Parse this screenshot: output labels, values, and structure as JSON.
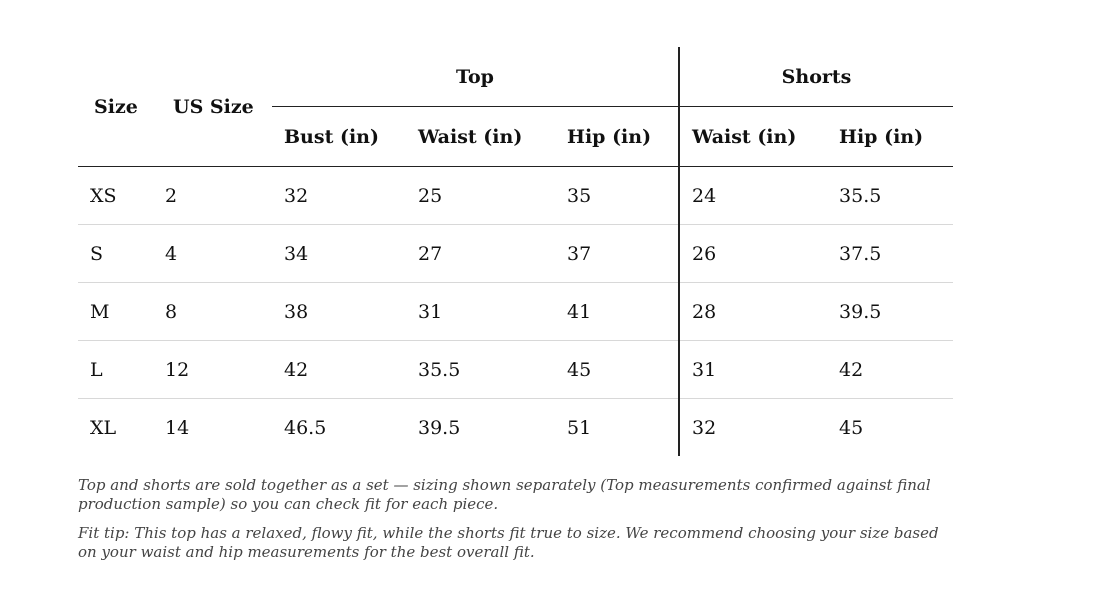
{
  "table": {
    "size_header": "Size",
    "us_size_header": "US Size",
    "top_header": "Top",
    "shorts_header": "Shorts",
    "sub_headers": {
      "top_bust": "Bust (in)",
      "top_waist": "Waist (in)",
      "top_hip": "Hip (in)",
      "shorts_waist": "Waist (in)",
      "shorts_hip": "Hip (in)"
    },
    "rows": [
      {
        "size": "XS",
        "us": "2",
        "bust": "32",
        "top_waist": "25",
        "top_hip": "35",
        "shorts_waist": "24",
        "shorts_hip": "35.5"
      },
      {
        "size": "S",
        "us": "4",
        "bust": "34",
        "top_waist": "27",
        "top_hip": "37",
        "shorts_waist": "26",
        "shorts_hip": "37.5"
      },
      {
        "size": "M",
        "us": "8",
        "bust": "38",
        "top_waist": "31",
        "top_hip": "41",
        "shorts_waist": "28",
        "shorts_hip": "39.5"
      },
      {
        "size": "L",
        "us": "12",
        "bust": "42",
        "top_waist": "35.5",
        "top_hip": "45",
        "shorts_waist": "31",
        "shorts_hip": "42"
      },
      {
        "size": "XL",
        "us": "14",
        "bust": "46.5",
        "top_waist": "39.5",
        "top_hip": "51",
        "shorts_waist": "32",
        "shorts_hip": "45"
      }
    ]
  },
  "notes": {
    "set_note": "Top and shorts are sold together as a set — sizing shown separately (Top measurements confirmed against final production sample) so you can check fit for each piece.",
    "fit_tip": "Fit tip: This top has a relaxed, flowy fit, while the shorts fit true to size. We recommend choosing your size based on your waist and hip measurements for the best overall fit."
  },
  "colors": {
    "text": "#111111",
    "note_text": "#444444",
    "row_divider": "#d8d8d8",
    "rule": "#222222"
  }
}
